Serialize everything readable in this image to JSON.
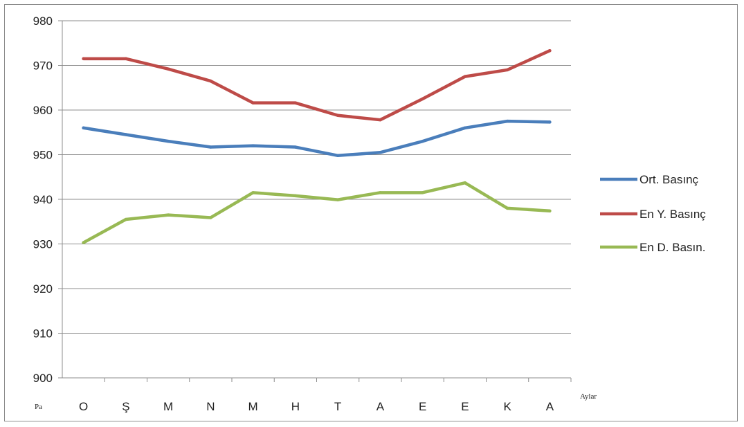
{
  "chart_data": {
    "type": "line",
    "title": "",
    "xlabel": "Aylar",
    "ylabel": "Pa",
    "categories": [
      "O",
      "Ş",
      "M",
      "N",
      "M",
      "H",
      "T",
      "A",
      "E",
      "E",
      "K",
      "A"
    ],
    "ylim": [
      900,
      980
    ],
    "yticks": [
      900,
      910,
      920,
      930,
      940,
      950,
      960,
      970,
      980
    ],
    "grid": true,
    "legend_position": "right",
    "series": [
      {
        "name": "Ort. Basınç",
        "color": "#4a7ebb",
        "values": [
          956,
          954.5,
          953,
          951.7,
          952,
          951.7,
          949.8,
          950.5,
          953,
          956,
          957.5,
          957.3
        ]
      },
      {
        "name": "En Y. Basınç",
        "color": "#be4b48",
        "values": [
          971.5,
          971.5,
          969.2,
          966.5,
          961.6,
          961.6,
          958.8,
          957.8,
          962.5,
          967.5,
          969,
          973.3
        ]
      },
      {
        "name": "En D. Basın.",
        "color": "#98b954",
        "values": [
          930.3,
          935.5,
          936.5,
          935.9,
          941.5,
          940.8,
          939.9,
          941.5,
          941.5,
          943.7,
          938,
          937.4
        ]
      }
    ]
  }
}
